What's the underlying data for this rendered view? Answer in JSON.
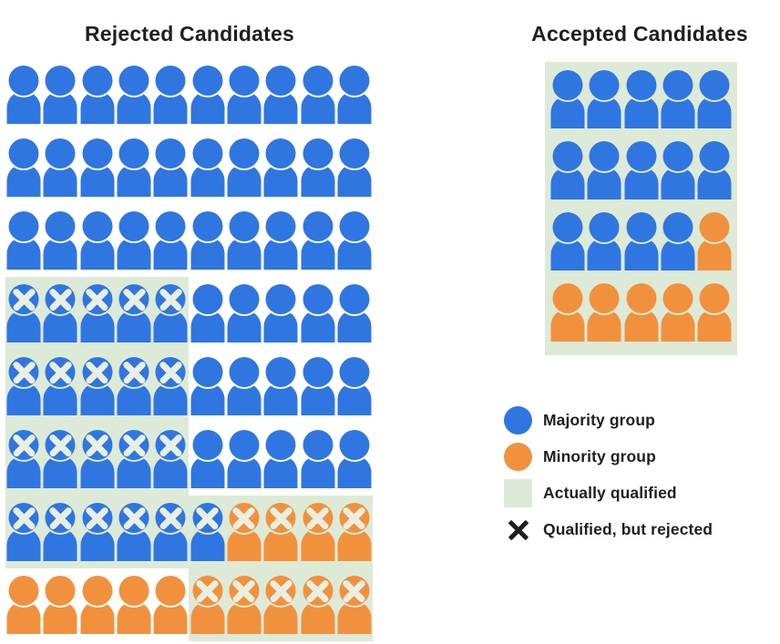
{
  "colors": {
    "majority": "#2F76E1",
    "minority": "#F2913D",
    "qualified": "#DDEAD7",
    "xlight": "#E9EFE1",
    "text": "#1F1F1F",
    "background": "#FFFFFF"
  },
  "cell_code_legend": {
    "b": "majority (blue) person",
    "o": "minority (orange) person",
    "q": "actually qualified (green background)",
    "x": "qualified-but-rejected X mark on head"
  },
  "panels": {
    "rejected": {
      "title": "Rejected Candidates",
      "columns": 10,
      "rows": [
        "b b b b b b b b b b",
        "b b b b b b b b b b",
        "b b b b b b b b b b",
        "bqx bqx bqx bqx bqx b b b b b",
        "bqx bqx bqx bqx bqx b b b b b",
        "bqx bqx bqx bqx bqx b b b b b",
        "bqx bqx bqx bqx bqx bqx oqx oqx oqx oqx",
        "o o o o o oqx oqx oqx oqx oqx"
      ]
    },
    "accepted": {
      "title": "Accepted Candidates",
      "columns": 5,
      "rows": [
        "bq bq bq bq bq",
        "bq bq bq bq bq",
        "bq bq bq bq oq",
        "oq oq oq oq oq"
      ]
    }
  },
  "legend": {
    "items": [
      {
        "key": "majority-group",
        "shape": "circle",
        "color_key": "majority",
        "label": "Majority group"
      },
      {
        "key": "minority-group",
        "shape": "circle",
        "color_key": "minority",
        "label": "Minority group"
      },
      {
        "key": "actually-qualified",
        "shape": "square",
        "color_key": "qualified",
        "label": "Actually qualified"
      },
      {
        "key": "qualified-but-rejected",
        "shape": "xmark",
        "color_key": "text",
        "label": "Qualified, but rejected"
      }
    ]
  },
  "chart_data": {
    "type": "pictogram",
    "title": "Candidate selection outcomes by group (waffle/pictogram chart)",
    "legend_position": "bottom-right",
    "panels": [
      {
        "name": "Rejected Candidates",
        "rows": 8,
        "cols": 10,
        "total_people": 80,
        "majority_count": 66,
        "minority_count": 14,
        "qualified_count": 30,
        "qualified_majority": 21,
        "qualified_minority": 9,
        "qualified_but_rejected_marks": 30
      },
      {
        "name": "Accepted Candidates",
        "rows": 4,
        "cols": 5,
        "total_people": 20,
        "majority_count": 14,
        "minority_count": 6,
        "qualified_count": 20,
        "qualified_majority": 14,
        "qualified_minority": 6,
        "qualified_but_rejected_marks": 0
      }
    ]
  }
}
